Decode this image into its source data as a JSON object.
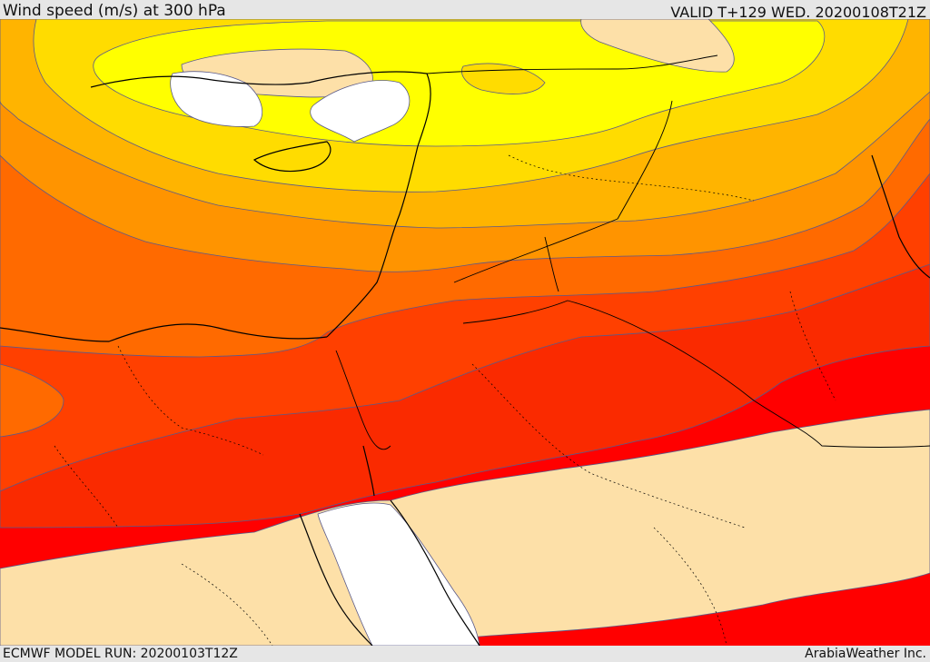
{
  "header": {
    "title": "Wind speed (m/s) at 300 hPa",
    "valid": "VALID T+129 WED. 20200108T21Z"
  },
  "footer": {
    "model_run": "ECMWF MODEL RUN: 20200103T12Z",
    "credit": "ArabiaWeather Inc."
  },
  "colors": {
    "calm": "#ffffff",
    "light": "#fde0a8",
    "band_yellow": "#ffff00",
    "band_gold": "#ffdc00",
    "band_amber": "#ffb400",
    "band_orange_light": "#ff9400",
    "band_orange": "#ff6a00",
    "band_red_orange": "#ff4000",
    "band_scarlet": "#fa2a00",
    "band_red": "#ff0000",
    "contour": "#5a5a8a",
    "coastline": "#000000"
  }
}
